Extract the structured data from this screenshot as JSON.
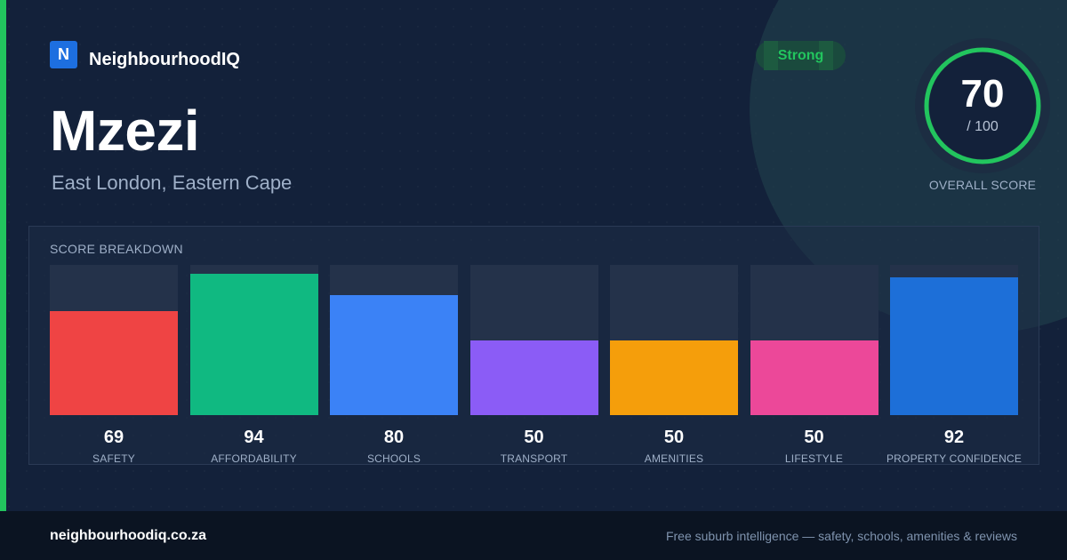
{
  "brand": {
    "logo_letter": "N",
    "name": "NeighbourhoodIQ"
  },
  "suburb": {
    "name": "Mzezi",
    "location": "East London, Eastern Cape"
  },
  "rating": {
    "badge": "Strong",
    "score": "70",
    "out_of": "/ 100",
    "score_fraction": 0.7,
    "label": "OVERALL SCORE",
    "ring_color": "#22c55e"
  },
  "breakdown": {
    "title": "SCORE BREAKDOWN",
    "chart_data": {
      "type": "bar",
      "categories": [
        "SAFETY",
        "AFFORDABILITY",
        "SCHOOLS",
        "TRANSPORT",
        "AMENITIES",
        "LIFESTYLE",
        "PROPERTY CONFIDENCE"
      ],
      "values": [
        69,
        94,
        80,
        50,
        50,
        50,
        92
      ],
      "ylim": [
        0,
        100
      ],
      "colors": [
        "#ef4444",
        "#10b981",
        "#3b82f6",
        "#8b5cf6",
        "#f59e0b",
        "#ec4899",
        "#1d6fd8"
      ]
    }
  },
  "footer": {
    "url": "neighbourhoodiq.co.za",
    "tagline": "Free suburb intelligence — safety, schools, amenities & reviews"
  }
}
